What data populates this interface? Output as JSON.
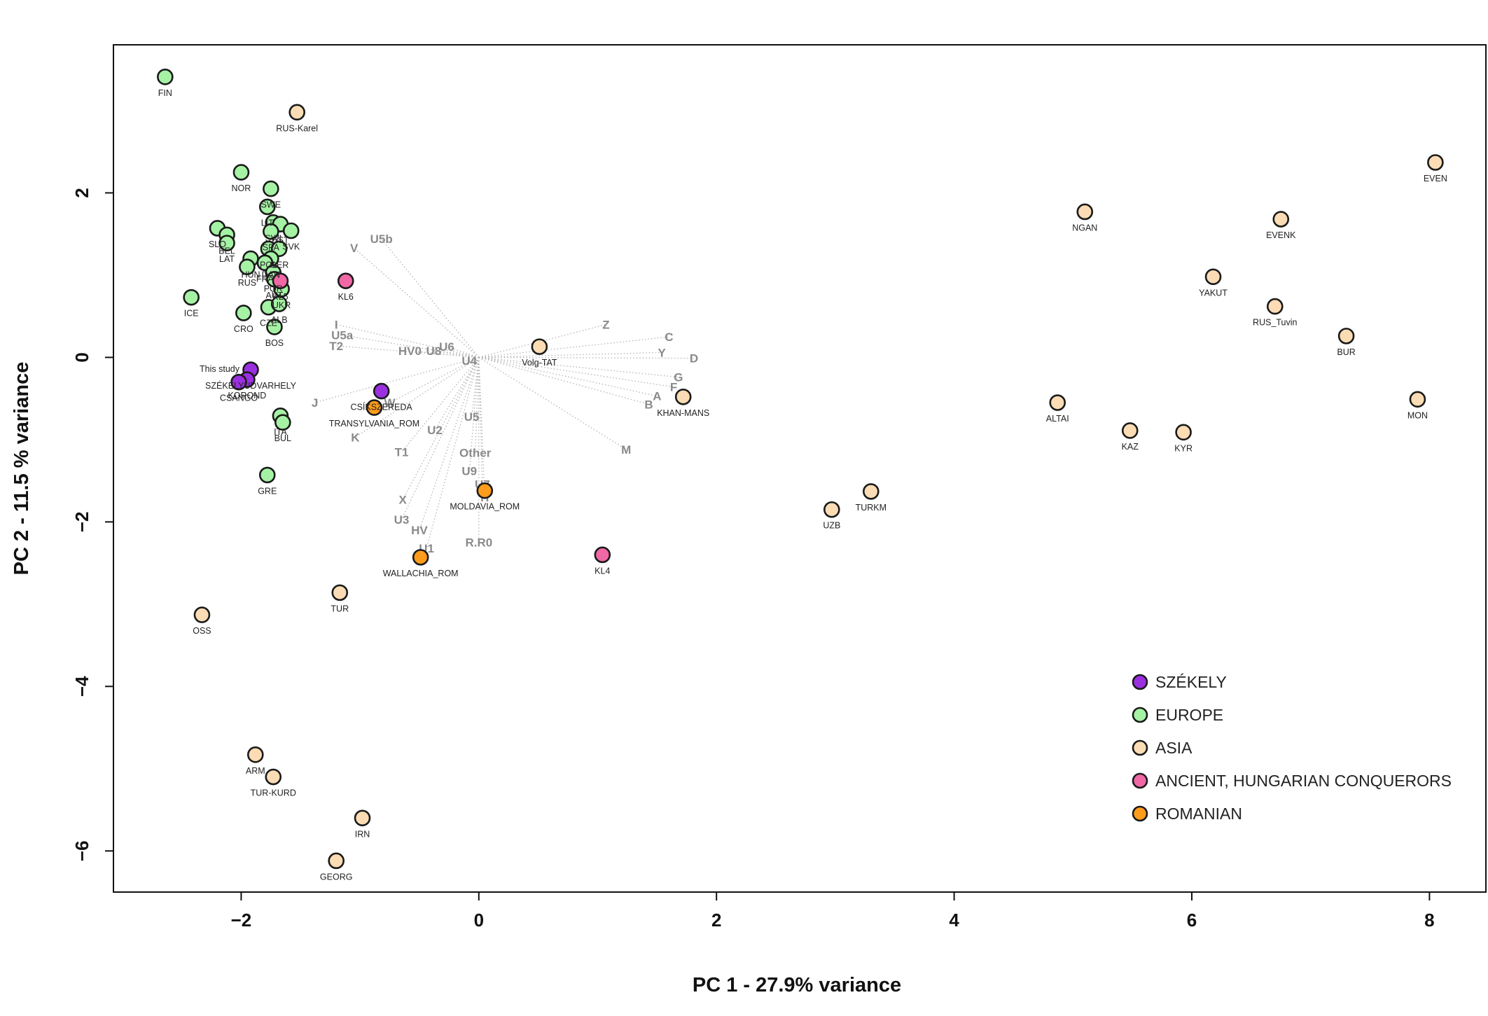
{
  "chart_data": {
    "type": "scatter",
    "xlabel": "PC 1 -  27.9% variance",
    "ylabel": "PC 2 -  11.5 % variance",
    "xlim": [
      -3.075,
      8.475
    ],
    "ylim": [
      -6.5,
      3.8
    ],
    "xticks": [
      -2,
      0,
      2,
      4,
      6,
      8
    ],
    "yticks": [
      -6,
      -4,
      -2,
      0,
      2
    ],
    "grid": false,
    "legend_position": "bottom-right",
    "groups": [
      {
        "name": "SZÉKELY",
        "color": "#9b30e0"
      },
      {
        "name": "EUROPE",
        "color": "#a5f2a5"
      },
      {
        "name": "ASIA",
        "color": "#fbdcb4"
      },
      {
        "name": "ANCIENT, HUNGARIAN CONQUERORS",
        "color": "#f068a6"
      },
      {
        "name": "ROMANIAN",
        "color": "#ff9c1c"
      }
    ],
    "points": [
      {
        "label": "FIN",
        "x": -2.64,
        "y": 3.41,
        "group": "EUROPE"
      },
      {
        "label": "NOR",
        "x": -2.0,
        "y": 2.25,
        "group": "EUROPE"
      },
      {
        "label": "SWE",
        "x": -1.75,
        "y": 2.05,
        "group": "EUROPE"
      },
      {
        "label": "LIT",
        "x": -1.78,
        "y": 1.83,
        "group": "EUROPE"
      },
      {
        "label": "SWI",
        "x": -1.73,
        "y": 1.64,
        "group": "EUROPE"
      },
      {
        "label": "EST",
        "x": -1.67,
        "y": 1.62,
        "group": "EUROPE"
      },
      {
        "label": "SVK",
        "x": -1.58,
        "y": 1.54,
        "group": "EUROPE"
      },
      {
        "label": "SLO",
        "x": -2.2,
        "y": 1.57,
        "group": "EUROPE"
      },
      {
        "label": "BEL",
        "x": -2.12,
        "y": 1.49,
        "group": "EUROPE"
      },
      {
        "label": "SPA",
        "x": -1.75,
        "y": 1.53,
        "group": "EUROPE"
      },
      {
        "label": "LAT",
        "x": -2.12,
        "y": 1.39,
        "group": "EUROPE"
      },
      {
        "label": "POL",
        "x": -1.77,
        "y": 1.32,
        "group": "EUROPE"
      },
      {
        "label": "GER",
        "x": -1.68,
        "y": 1.32,
        "group": "EUROPE"
      },
      {
        "label": "DAN",
        "x": -1.75,
        "y": 1.2,
        "group": "EUROPE"
      },
      {
        "label": "HUN",
        "x": -1.92,
        "y": 1.2,
        "group": "EUROPE"
      },
      {
        "label": "FRA",
        "x": -1.8,
        "y": 1.15,
        "group": "EUROPE"
      },
      {
        "label": "RUS",
        "x": -1.95,
        "y": 1.1,
        "group": "EUROPE"
      },
      {
        "label": "POR",
        "x": -1.73,
        "y": 1.03,
        "group": "EUROPE"
      },
      {
        "label": "UKR",
        "x": -1.66,
        "y": 0.83,
        "group": "EUROPE"
      },
      {
        "label": "AUT",
        "x": -1.72,
        "y": 0.95,
        "group": "EUROPE"
      },
      {
        "label": "CZE",
        "x": -1.77,
        "y": 0.61,
        "group": "EUROPE"
      },
      {
        "label": "ALB",
        "x": -1.68,
        "y": 0.65,
        "group": "EUROPE"
      },
      {
        "label": "ICE",
        "x": -2.42,
        "y": 0.73,
        "group": "EUROPE"
      },
      {
        "label": "CRO",
        "x": -1.98,
        "y": 0.54,
        "group": "EUROPE"
      },
      {
        "label": "BOS",
        "x": -1.72,
        "y": 0.37,
        "group": "EUROPE"
      },
      {
        "label": "ITA",
        "x": -1.67,
        "y": -0.71,
        "group": "EUROPE"
      },
      {
        "label": "BUL",
        "x": -1.65,
        "y": -0.79,
        "group": "EUROPE"
      },
      {
        "label": "GRE",
        "x": -1.78,
        "y": -1.43,
        "group": "EUROPE"
      },
      {
        "label": "SZÉKELYUDVARHELY",
        "x": -1.92,
        "y": -0.15,
        "group": "SZÉKELY"
      },
      {
        "label": "KOROND",
        "x": -1.95,
        "y": -0.27,
        "group": "SZÉKELY"
      },
      {
        "label": "CSÁNGÓ",
        "x": -2.02,
        "y": -0.3,
        "group": "SZÉKELY"
      },
      {
        "label": "CSÍKSZEREDA",
        "x": -0.82,
        "y": -0.41,
        "group": "SZÉKELY"
      },
      {
        "label": "KL5",
        "x": -1.67,
        "y": 0.93,
        "group": "ANCIENT, HUNGARIAN CONQUERORS"
      },
      {
        "label": "KL6",
        "x": -1.12,
        "y": 0.93,
        "group": "ANCIENT, HUNGARIAN CONQUERORS"
      },
      {
        "label": "KL4",
        "x": 1.04,
        "y": -2.4,
        "group": "ANCIENT, HUNGARIAN CONQUERORS"
      },
      {
        "label": "TRANSYLVANIA_ROM",
        "x": -0.88,
        "y": -0.61,
        "group": "ROMANIAN"
      },
      {
        "label": "MOLDAVIA_ROM",
        "x": 0.05,
        "y": -1.62,
        "group": "ROMANIAN"
      },
      {
        "label": "WALLACHIA_ROM",
        "x": -0.49,
        "y": -2.43,
        "group": "ROMANIAN"
      },
      {
        "label": "RUS-Karel",
        "x": -1.53,
        "y": 2.98,
        "group": "ASIA"
      },
      {
        "label": "Volg-TAT",
        "x": 0.51,
        "y": 0.13,
        "group": "ASIA"
      },
      {
        "label": "KHAN-MANS",
        "x": 1.72,
        "y": -0.48,
        "group": "ASIA"
      },
      {
        "label": "UZB",
        "x": 2.97,
        "y": -1.85,
        "group": "ASIA"
      },
      {
        "label": "TURKM",
        "x": 3.3,
        "y": -1.63,
        "group": "ASIA"
      },
      {
        "label": "TUR",
        "x": -1.17,
        "y": -2.86,
        "group": "ASIA"
      },
      {
        "label": "OSS",
        "x": -2.33,
        "y": -3.13,
        "group": "ASIA"
      },
      {
        "label": "ARM",
        "x": -1.88,
        "y": -4.83,
        "group": "ASIA"
      },
      {
        "label": "TUR-KURD",
        "x": -1.73,
        "y": -5.1,
        "group": "ASIA"
      },
      {
        "label": "IRN",
        "x": -0.98,
        "y": -5.6,
        "group": "ASIA"
      },
      {
        "label": "GEORG",
        "x": -1.2,
        "y": -6.12,
        "group": "ASIA"
      },
      {
        "label": "NGAN",
        "x": 5.1,
        "y": 1.77,
        "group": "ASIA"
      },
      {
        "label": "EVENK",
        "x": 6.75,
        "y": 1.68,
        "group": "ASIA"
      },
      {
        "label": "EVEN",
        "x": 8.05,
        "y": 2.37,
        "group": "ASIA"
      },
      {
        "label": "YAKUT",
        "x": 6.18,
        "y": 0.98,
        "group": "ASIA"
      },
      {
        "label": "RUS_Tuvin",
        "x": 6.7,
        "y": 0.62,
        "group": "ASIA"
      },
      {
        "label": "BUR",
        "x": 7.3,
        "y": 0.26,
        "group": "ASIA"
      },
      {
        "label": "ALTAI",
        "x": 4.87,
        "y": -0.55,
        "group": "ASIA"
      },
      {
        "label": "KAZ",
        "x": 5.48,
        "y": -0.89,
        "group": "ASIA"
      },
      {
        "label": "KYR",
        "x": 5.93,
        "y": -0.91,
        "group": "ASIA"
      },
      {
        "label": "MON",
        "x": 7.9,
        "y": -0.51,
        "group": "ASIA"
      }
    ],
    "annotations": [
      {
        "text": "This study",
        "x": -1.92,
        "y": -0.15
      }
    ],
    "haplogroup_labels": [
      {
        "label": "U5b",
        "x": -0.82,
        "y": 1.44
      },
      {
        "label": "V",
        "x": -1.05,
        "y": 1.33
      },
      {
        "label": "I",
        "x": -1.2,
        "y": 0.4
      },
      {
        "label": "U5a",
        "x": -1.15,
        "y": 0.27
      },
      {
        "label": "T2",
        "x": -1.2,
        "y": 0.14
      },
      {
        "label": "HV0",
        "x": -0.58,
        "y": 0.08
      },
      {
        "label": "U8",
        "x": -0.38,
        "y": 0.08
      },
      {
        "label": "U6",
        "x": -0.27,
        "y": 0.13
      },
      {
        "label": "U4",
        "x": -0.08,
        "y": -0.04
      },
      {
        "label": "Z",
        "x": 1.07,
        "y": 0.4
      },
      {
        "label": "C",
        "x": 1.6,
        "y": 0.25
      },
      {
        "label": "Y",
        "x": 1.54,
        "y": 0.06
      },
      {
        "label": "D",
        "x": 1.81,
        "y": -0.01
      },
      {
        "label": "G",
        "x": 1.68,
        "y": -0.24
      },
      {
        "label": "F",
        "x": 1.64,
        "y": -0.36
      },
      {
        "label": "A",
        "x": 1.5,
        "y": -0.47
      },
      {
        "label": "B",
        "x": 1.43,
        "y": -0.57
      },
      {
        "label": "M",
        "x": 1.24,
        "y": -1.12
      },
      {
        "label": "J",
        "x": -1.38,
        "y": -0.55
      },
      {
        "label": "W",
        "x": -0.75,
        "y": -0.55
      },
      {
        "label": "K",
        "x": -1.04,
        "y": -0.97
      },
      {
        "label": "U2",
        "x": -0.37,
        "y": -0.88
      },
      {
        "label": "U5",
        "x": -0.06,
        "y": -0.72
      },
      {
        "label": "T1",
        "x": -0.65,
        "y": -1.15
      },
      {
        "label": "Other",
        "x": -0.03,
        "y": -1.16
      },
      {
        "label": "U9",
        "x": -0.08,
        "y": -1.38
      },
      {
        "label": "U7",
        "x": 0.03,
        "y": -1.54
      },
      {
        "label": "X",
        "x": -0.64,
        "y": -1.73
      },
      {
        "label": "U3",
        "x": -0.65,
        "y": -1.97
      },
      {
        "label": "HV",
        "x": -0.5,
        "y": -2.1
      },
      {
        "label": "H",
        "x": 0.05,
        "y": -1.7
      },
      {
        "label": "R.R0",
        "x": 0.0,
        "y": -2.25
      },
      {
        "label": "U1",
        "x": -0.44,
        "y": -2.32
      }
    ]
  }
}
